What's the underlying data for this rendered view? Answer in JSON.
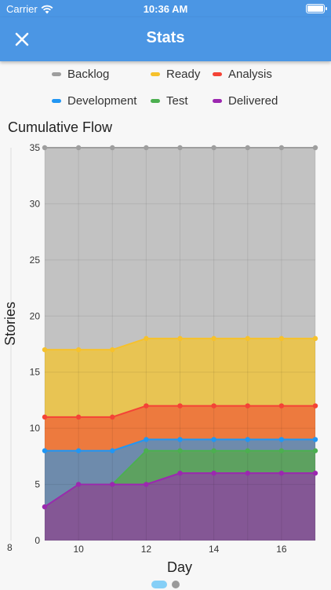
{
  "status_bar": {
    "carrier": "Carrier",
    "time": "10:36 AM"
  },
  "app_bar": {
    "title": "Stats"
  },
  "legend": [
    {
      "label": "Backlog",
      "color": "#9e9e9e"
    },
    {
      "label": "Ready",
      "color": "#f6c12c"
    },
    {
      "label": "Analysis",
      "color": "#f44336"
    },
    {
      "label": "Development",
      "color": "#2196f3"
    },
    {
      "label": "Test",
      "color": "#4caf50"
    },
    {
      "label": "Delivered",
      "color": "#9c27b0"
    }
  ],
  "chart_data": {
    "type": "area",
    "title": "Cumulative Flow",
    "xlabel": "Day",
    "ylabel": "Stories",
    "x": [
      9,
      10,
      11,
      12,
      13,
      14,
      15,
      16,
      17
    ],
    "xlim": [
      9,
      17
    ],
    "ylim": [
      0,
      35
    ],
    "x_ticks": [
      10,
      12,
      14,
      16
    ],
    "y_ticks": [
      0,
      5,
      10,
      15,
      20,
      25,
      30,
      35
    ],
    "extra_x_tick": "8",
    "grid": true,
    "legend_position": "top",
    "series": [
      {
        "name": "Backlog",
        "color": "#9e9e9e",
        "fill": "#c2c2c2",
        "values": [
          35,
          35,
          35,
          35,
          35,
          35,
          35,
          35,
          35
        ]
      },
      {
        "name": "Ready",
        "color": "#f6c12c",
        "fill": "#e8c453",
        "values": [
          17,
          17,
          17,
          18,
          18,
          18,
          18,
          18,
          18
        ]
      },
      {
        "name": "Analysis",
        "color": "#f44336",
        "fill": "#ed7a3e",
        "values": [
          11,
          11,
          11,
          12,
          12,
          12,
          12,
          12,
          12
        ]
      },
      {
        "name": "Development",
        "color": "#2196f3",
        "fill": "#6e8bac",
        "values": [
          8,
          8,
          8,
          9,
          9,
          9,
          9,
          9,
          9
        ]
      },
      {
        "name": "Test",
        "color": "#4caf50",
        "fill": "#5da160",
        "values": [
          3,
          5,
          5,
          8,
          8,
          8,
          8,
          8,
          8
        ]
      },
      {
        "name": "Delivered",
        "color": "#9c27b0",
        "fill": "#845795",
        "values": [
          3,
          5,
          5,
          5,
          6,
          6,
          6,
          6,
          6
        ]
      }
    ]
  },
  "pager": {
    "pages": 2,
    "active": 0
  }
}
